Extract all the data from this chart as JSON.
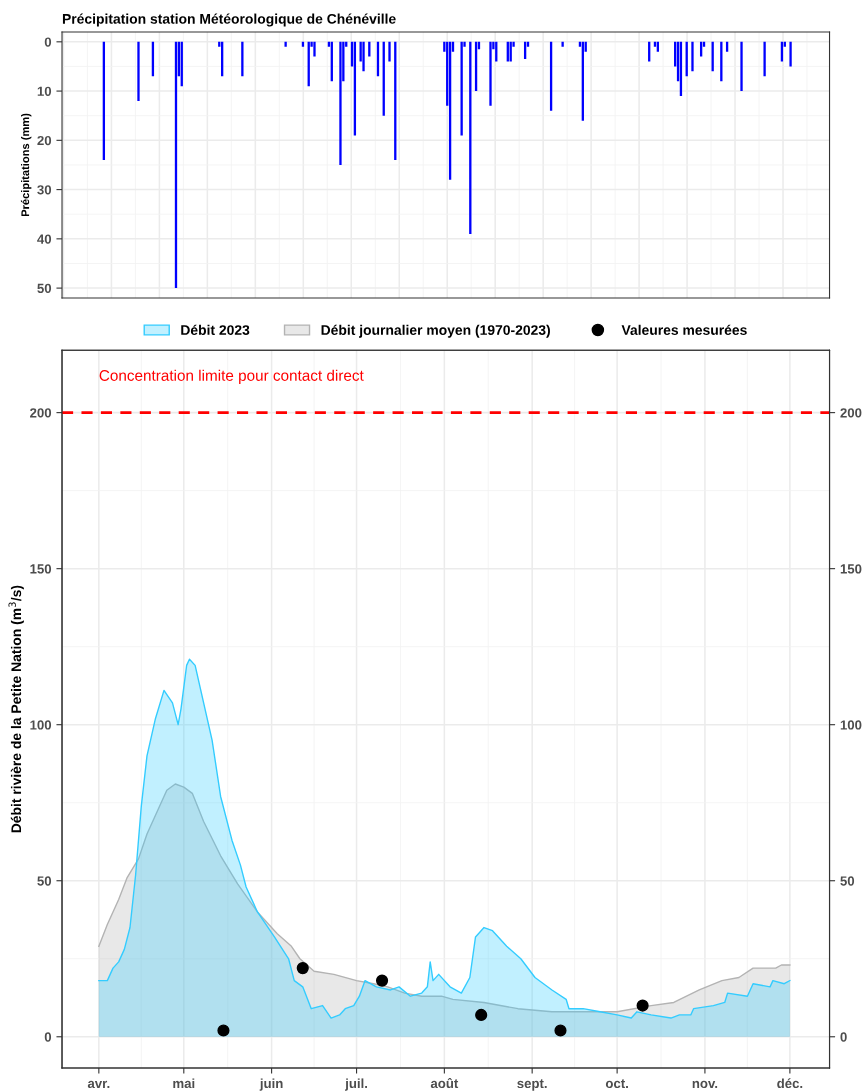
{
  "chart_data": [
    {
      "type": "bar",
      "title": "Précipitation station Météorologique de Chénéville",
      "ylabel": "Précipitations (mm)",
      "color": "#0000ff",
      "categories": [
        null,
        null,
        null,
        null,
        null,
        null,
        null,
        null,
        null,
        null,
        null,
        null,
        null,
        null,
        null,
        null,
        null,
        null,
        null,
        null,
        null,
        null,
        null,
        null,
        null,
        null,
        null,
        null,
        null,
        null,
        null,
        null,
        null,
        null,
        null,
        null,
        null,
        null,
        null,
        null,
        null,
        null,
        null,
        null,
        null,
        null,
        null,
        null,
        null,
        null,
        null,
        null,
        null,
        null,
        null,
        null,
        null,
        null,
        null,
        null,
        null,
        null,
        null,
        null,
        null,
        null,
        null,
        null,
        null,
        null,
        null,
        null,
        null,
        null,
        null,
        null,
        null,
        null,
        null,
        null,
        null,
        null,
        null,
        null,
        null,
        null,
        null,
        null,
        null,
        null,
        null,
        null,
        null,
        null,
        null,
        null,
        null,
        null,
        null,
        null,
        null,
        null,
        null,
        null,
        null,
        null,
        null,
        null,
        null,
        null,
        null,
        null,
        null,
        null,
        null,
        null,
        null,
        null,
        null,
        null,
        null,
        null,
        null,
        null,
        null,
        null,
        null,
        null,
        null,
        null,
        null,
        null,
        null,
        null,
        null,
        null,
        null,
        null,
        null,
        null,
        null,
        null,
        null,
        null,
        null,
        null,
        null,
        null,
        null,
        null,
        null,
        null,
        null,
        null,
        null,
        null,
        null,
        null,
        null,
        null,
        null,
        null,
        null,
        null,
        null,
        null,
        null,
        null,
        null,
        null,
        null,
        null,
        null,
        null,
        null,
        null,
        null,
        null,
        null,
        null,
        null,
        null,
        null,
        null,
        null,
        null,
        null,
        null,
        null,
        null,
        null,
        null,
        null,
        null,
        null,
        null,
        null,
        null,
        null,
        null,
        null,
        null,
        null,
        null,
        null,
        null,
        null,
        null,
        null,
        null,
        null,
        null,
        null,
        null,
        null,
        null,
        null,
        null,
        null,
        null,
        null,
        null,
        null,
        null,
        null,
        null,
        null,
        null,
        null,
        null,
        null,
        null,
        null,
        null,
        null,
        null,
        null,
        null,
        null,
        null,
        null,
        null,
        null,
        null,
        null,
        null,
        null,
        null,
        null,
        null,
        null,
        null,
        null,
        null,
        null,
        null,
        null,
        null,
        null,
        null,
        null,
        null,
        null,
        null,
        null,
        null
      ],
      "values": [
        null,
        null,
        null,
        null,
        null,
        null,
        null,
        null,
        null,
        null,
        null,
        null,
        null,
        null,
        24,
        null,
        null,
        null,
        null,
        null,
        null,
        null,
        null,
        null,
        null,
        null,
        12,
        null,
        null,
        null,
        null,
        7,
        null,
        null,
        null,
        null,
        null,
        null,
        null,
        50,
        7,
        9,
        null,
        null,
        null,
        null,
        null,
        null,
        null,
        null,
        null,
        null,
        null,
        null,
        1,
        7,
        null,
        null,
        null,
        null,
        null,
        null,
        7,
        null,
        null,
        null,
        null,
        null,
        null,
        null,
        null,
        null,
        null,
        null,
        null,
        null,
        null,
        1,
        null,
        null,
        null,
        null,
        null,
        1,
        null,
        9,
        1,
        3,
        null,
        null,
        null,
        null,
        1,
        8,
        null,
        null,
        25,
        8,
        1,
        null,
        5,
        19,
        null,
        4,
        6,
        null,
        3,
        null,
        null,
        7,
        null,
        15,
        null,
        4,
        null,
        24,
        null,
        null,
        null,
        null,
        null,
        null,
        null,
        null,
        null,
        null,
        null,
        null,
        null,
        null,
        null,
        null,
        2,
        13,
        28,
        2,
        null,
        null,
        19,
        1,
        null,
        39,
        null,
        10,
        1.5,
        null,
        null,
        null,
        13,
        1.5,
        4,
        null,
        null,
        null,
        4,
        4,
        1,
        null,
        null,
        null,
        3.5,
        1,
        null,
        null,
        null,
        null,
        null,
        null,
        null,
        14,
        null,
        null,
        null,
        1,
        null,
        null,
        null,
        null,
        null,
        1,
        16,
        2,
        null,
        null,
        null,
        null,
        null,
        null,
        null,
        null,
        null,
        null,
        null,
        null,
        null,
        null,
        null,
        null,
        null,
        null,
        null,
        null,
        null,
        4,
        null,
        1,
        2,
        null,
        null,
        null,
        null,
        null,
        5,
        8,
        11,
        null,
        7,
        null,
        6,
        null,
        null,
        3,
        1,
        null,
        null,
        6,
        null,
        null,
        8,
        null,
        2,
        null,
        null,
        null,
        null,
        10,
        null,
        null,
        null,
        null,
        null,
        null,
        null,
        7,
        null,
        null,
        null,
        null,
        null,
        4,
        1,
        null,
        5,
        null,
        null,
        null,
        null,
        null,
        null,
        null,
        null,
        null,
        null,
        null,
        null,
        null
      ],
      "ylim": [
        52,
        -2
      ],
      "yticks": [
        0,
        10,
        20,
        30,
        40,
        50
      ],
      "grid": true
    },
    {
      "type": "area",
      "ylabel": "Débit rivière de la Petite Nation (m$^{3}$/s)",
      "legend": "top",
      "grid": true,
      "series": [
        {
          "name": "Débit 2023",
          "type": "area",
          "color": "#33ccff",
          "x": [
            "2023-04-01",
            "2023-04-04",
            "2023-04-06",
            "2023-04-08",
            "2023-04-10",
            "2023-04-12",
            "2023-04-14",
            "2023-04-16",
            "2023-04-18",
            "2023-04-21",
            "2023-04-24",
            "2023-04-27",
            "2023-04-29",
            "2023-04-30",
            "2023-05-02",
            "2023-05-03",
            "2023-05-05",
            "2023-05-07",
            "2023-05-11",
            "2023-05-14",
            "2023-05-18",
            "2023-05-21",
            "2023-05-23",
            "2023-05-27",
            "2023-06-02",
            "2023-06-07",
            "2023-06-09",
            "2023-06-12",
            "2023-06-15",
            "2023-06-19",
            "2023-06-22",
            "2023-06-25",
            "2023-06-27",
            "2023-06-30",
            "2023-07-02",
            "2023-07-04",
            "2023-07-08",
            "2023-07-13",
            "2023-07-16",
            "2023-07-20",
            "2023-07-24",
            "2023-07-26",
            "2023-07-27",
            "2023-07-28",
            "2023-07-30",
            "2023-08-03",
            "2023-08-07",
            "2023-08-10",
            "2023-08-12",
            "2023-08-15",
            "2023-08-18",
            "2023-08-23",
            "2023-08-28",
            "2023-09-02",
            "2023-09-08",
            "2023-09-13",
            "2023-09-14",
            "2023-09-19",
            "2023-09-25",
            "2023-10-01",
            "2023-10-06",
            "2023-10-08",
            "2023-10-13",
            "2023-10-20",
            "2023-10-23",
            "2023-10-27",
            "2023-10-28",
            "2023-11-04",
            "2023-11-08",
            "2023-11-09",
            "2023-11-16",
            "2023-11-18",
            "2023-11-24",
            "2023-11-25",
            "2023-11-29",
            "2023-12-01"
          ],
          "values": [
            18,
            18,
            22,
            24,
            28,
            35,
            52,
            74,
            90,
            102,
            111,
            107,
            100,
            105,
            119,
            121,
            119,
            111,
            95,
            77,
            63,
            55,
            48,
            40,
            32,
            25,
            18,
            16,
            9,
            10,
            6,
            7,
            9,
            10,
            13,
            18,
            16,
            15,
            16,
            13,
            14,
            16,
            24,
            18,
            20,
            16,
            14,
            19,
            32,
            35,
            34,
            29,
            25,
            19,
            15,
            12,
            9,
            9,
            8,
            7,
            6,
            8,
            7,
            6,
            7,
            7,
            9,
            10,
            11,
            14,
            13,
            17,
            16,
            18,
            17,
            18
          ]
        },
        {
          "name": "Débit journalier moyen (1970-2023)",
          "type": "area",
          "color": "#b3b3b3",
          "x": [
            "2023-04-01",
            "2023-04-04",
            "2023-04-08",
            "2023-04-11",
            "2023-04-15",
            "2023-04-18",
            "2023-04-22",
            "2023-04-25",
            "2023-04-28",
            "2023-05-01",
            "2023-05-04",
            "2023-05-08",
            "2023-05-14",
            "2023-05-20",
            "2023-05-27",
            "2023-06-03",
            "2023-06-08",
            "2023-06-11",
            "2023-06-16",
            "2023-06-23",
            "2023-07-01",
            "2023-07-07",
            "2023-07-12",
            "2023-07-18",
            "2023-07-24",
            "2023-07-31",
            "2023-08-04",
            "2023-08-15",
            "2023-08-27",
            "2023-09-08",
            "2023-09-19",
            "2023-10-01",
            "2023-10-13",
            "2023-10-21",
            "2023-10-30",
            "2023-11-07",
            "2023-11-13",
            "2023-11-18",
            "2023-11-22",
            "2023-11-26",
            "2023-11-28",
            "2023-12-01"
          ],
          "values": [
            29,
            36,
            44,
            51,
            57,
            65,
            73,
            79,
            81,
            80,
            78,
            69,
            58,
            49,
            40,
            33,
            29,
            25,
            21,
            20,
            18,
            17,
            16,
            14,
            13,
            13,
            12,
            11,
            9,
            8,
            8,
            8,
            10,
            11,
            15,
            18,
            19,
            22,
            22,
            22,
            23,
            23
          ]
        },
        {
          "name": "Valeures mesurées",
          "type": "scatter",
          "color": "#000000",
          "marker": "circle",
          "x": [
            "2023-05-15",
            "2023-06-12",
            "2023-07-10",
            "2023-08-14",
            "2023-09-11",
            "2023-10-10"
          ],
          "values": [
            2,
            22,
            18,
            7,
            2,
            10
          ]
        }
      ],
      "ylim": [
        -10,
        220
      ],
      "yticks": [
        0,
        50,
        100,
        150,
        200
      ],
      "y2lim": [
        -10,
        220
      ],
      "y2ticks": [
        0,
        50,
        100,
        150,
        200
      ],
      "xlim": [
        "2023-03-19",
        "2023-12-15"
      ],
      "xticks": [
        {
          "value": "2023-04-01",
          "label": "avr."
        },
        {
          "value": "2023-05-01",
          "label": "mai"
        },
        {
          "value": "2023-06-01",
          "label": "juin"
        },
        {
          "value": "2023-07-01",
          "label": "juil."
        },
        {
          "value": "2023-08-01",
          "label": "août"
        },
        {
          "value": "2023-09-01",
          "label": "sept."
        },
        {
          "value": "2023-10-01",
          "label": "oct."
        },
        {
          "value": "2023-11-01",
          "label": "nov."
        },
        {
          "value": "2023-12-01",
          "label": "déc."
        }
      ],
      "ref_lines": [
        {
          "axis": "y",
          "value": 200,
          "label": "Concentration limite pour contact direct",
          "color": "#ff0000",
          "line_style": "dashed"
        }
      ]
    }
  ]
}
